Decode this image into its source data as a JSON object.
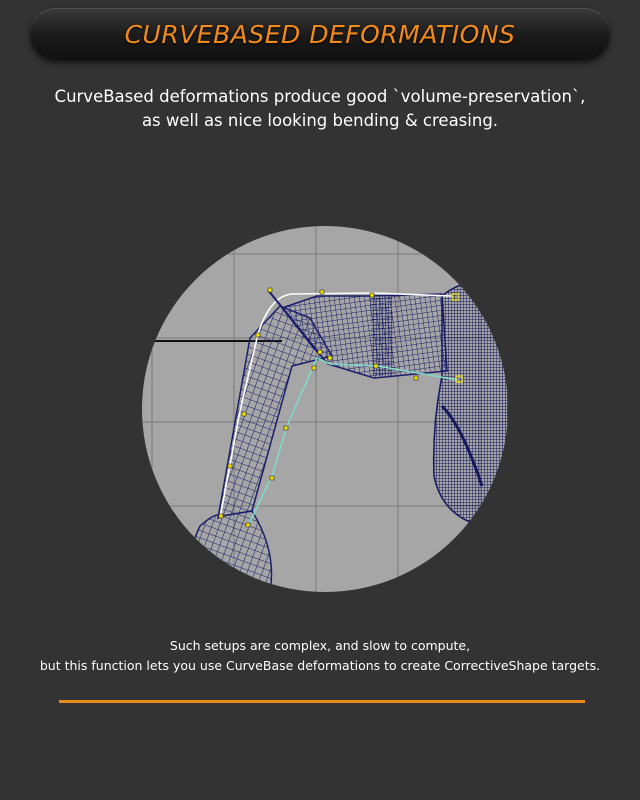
{
  "title": "CURVEBASED DEFORMATIONS",
  "intro": {
    "line1": "CurveBased deformations produce good `volume-preservation`,",
    "line2": "as well as nice looking bending & creasing."
  },
  "viewport": {
    "image": "3d-wireframe-arm-with-deformation-curve",
    "colors": {
      "background": "#a6a6a6",
      "wireframe": "#1c1f6b",
      "curve_outer": "#ffffff",
      "curve_inner": "#7fd9c8",
      "control_points": "#f2e400"
    }
  },
  "outro": {
    "line1": "Such setups are complex, and slow to compute,",
    "line2": "but this function lets you use CurveBase deformations to create CorrectiveShape targets."
  },
  "colors": {
    "page_background": "#333333",
    "accent": "#e8891a",
    "title": "#f08a1a",
    "text": "#ffffff"
  }
}
